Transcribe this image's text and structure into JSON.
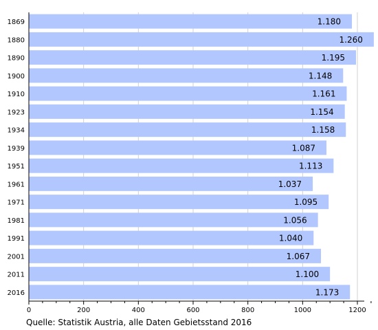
{
  "chart_data": {
    "type": "bar",
    "orientation": "horizontal",
    "categories": [
      "1869",
      "1880",
      "1890",
      "1900",
      "1910",
      "1923",
      "1934",
      "1939",
      "1951",
      "1961",
      "1971",
      "1981",
      "1991",
      "2001",
      "2011",
      "2016"
    ],
    "values": [
      1180,
      1260,
      1195,
      1148,
      1161,
      1154,
      1158,
      1087,
      1113,
      1037,
      1095,
      1056,
      1040,
      1067,
      1100,
      1173
    ],
    "data_labels": [
      "1.180",
      "1.260",
      "1.195",
      "1.148",
      "1.161",
      "1.154",
      "1.158",
      "1.087",
      "1.113",
      "1.037",
      "1.095",
      "1.056",
      "1.040",
      "1.067",
      "1.100",
      "1.173"
    ],
    "x_ticks": [
      "0",
      "200",
      "400",
      "600",
      "800",
      "1000",
      "1200"
    ],
    "x_tick_values": [
      0,
      200,
      400,
      600,
      800,
      1000,
      1200
    ],
    "xlim": [
      0,
      1280
    ],
    "grid": "vertical",
    "bar_color": "#b3c7ff",
    "title": "",
    "xlabel": "",
    "ylabel": ""
  },
  "source_note": "Quelle: Statistik Austria, alle Daten Gebietsstand 2016"
}
